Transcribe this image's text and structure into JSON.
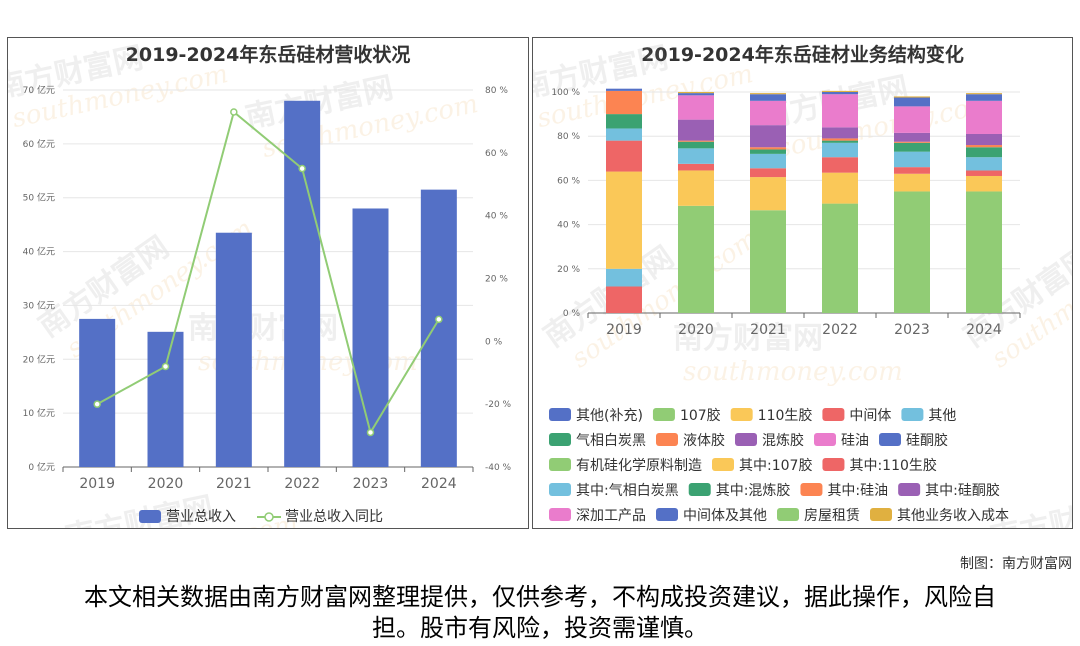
{
  "charts_meta": {
    "watermark_brand": "南方财富网",
    "watermark_site": "southmoney.com"
  },
  "credit": "制图：南方财富网",
  "disclaimer": "本文相关数据由南方财富网整理提供，仅供参考，不构成投资建议，据此操作，风险自担。股市有风险，投资需谨慎。",
  "colors": {
    "bar_blue": "#5470c6",
    "line_green": "#91cc75",
    "grid": "#e6e6e6",
    "axis_text": "#666666"
  },
  "chart_data": [
    {
      "type": "bar",
      "title": "2019-2024年东岳硅材营收状况",
      "categories": [
        "2019",
        "2020",
        "2021",
        "2022",
        "2023",
        "2024"
      ],
      "y_left": {
        "min": 0,
        "max": 70,
        "step": 10,
        "unit": "亿元"
      },
      "y_right": {
        "min": -40,
        "max": 80,
        "step": 20,
        "unit": "%"
      },
      "series": [
        {
          "name": "营业总收入",
          "type": "bar",
          "axis": "left",
          "color": "#5470c6",
          "values": [
            27.5,
            25.1,
            43.5,
            68.0,
            48.0,
            51.5
          ]
        },
        {
          "name": "营业总收入同比",
          "type": "line",
          "axis": "right",
          "color": "#91cc75",
          "values": [
            -20,
            -8,
            73,
            55,
            -29,
            7
          ]
        }
      ],
      "legend_position": "bottom"
    },
    {
      "type": "bar",
      "stacked": true,
      "normalized": true,
      "title": "2019-2024年东岳硅材业务结构变化",
      "categories": [
        "2019",
        "2020",
        "2021",
        "2022",
        "2023",
        "2024"
      ],
      "ylim": [
        0,
        100
      ],
      "y_ticks": [
        "0 %",
        "20 %",
        "40 %",
        "60 %",
        "80 %",
        "100 %"
      ],
      "legend_position": "bottom",
      "series": [
        {
          "name": "其他(补充)",
          "color": "#5470c6",
          "values": [
            0,
            0,
            0,
            0,
            0,
            0
          ]
        },
        {
          "name": "107胶",
          "color": "#91cc75",
          "values": [
            0,
            0,
            0,
            0,
            0,
            0
          ]
        },
        {
          "name": "110生胶",
          "color": "#fac858",
          "values": [
            0,
            0,
            0,
            0,
            0,
            0
          ]
        },
        {
          "name": "中间体",
          "color": "#ee6666",
          "values": [
            12,
            0,
            0,
            0,
            0,
            0
          ]
        },
        {
          "name": "其他",
          "color": "#73c0de",
          "values": [
            8,
            0,
            0,
            0,
            0,
            0
          ]
        },
        {
          "name": "气相白炭黑",
          "color": "#3ba272",
          "values": [
            0,
            0,
            0,
            0,
            0,
            0
          ]
        },
        {
          "name": "液体胶",
          "color": "#fc8452",
          "values": [
            0,
            0,
            0,
            0,
            0,
            0
          ]
        },
        {
          "name": "混炼胶",
          "color": "#9a60b4",
          "values": [
            0,
            0,
            0,
            0,
            0,
            0
          ]
        },
        {
          "name": "硅油",
          "color": "#ea7ccc",
          "values": [
            0,
            0,
            0,
            0,
            0,
            0
          ]
        },
        {
          "name": "硅酮胶",
          "color": "#5470c6",
          "values": [
            0,
            0,
            0,
            0,
            0,
            0
          ]
        },
        {
          "name": "有机硅化学原料制造",
          "color": "#91cc75",
          "values": [
            0,
            48.5,
            46.5,
            49.5,
            55,
            55
          ]
        },
        {
          "name": "其中:107胶",
          "color": "#fac858",
          "values": [
            44,
            16,
            15,
            14,
            8,
            7
          ]
        },
        {
          "name": "其中:110生胶",
          "color": "#ee6666",
          "values": [
            14,
            3,
            4,
            7,
            3,
            2.5
          ]
        },
        {
          "name": "其中:气相白炭黑",
          "color": "#73c0de",
          "values": [
            5.5,
            7,
            6.5,
            6.5,
            7,
            6
          ]
        },
        {
          "name": "其中:混炼胶",
          "color": "#3ba272",
          "values": [
            6.5,
            3,
            2,
            1,
            4,
            4.5
          ]
        },
        {
          "name": "其中:硅油",
          "color": "#fc8452",
          "values": [
            10.5,
            0.5,
            1,
            1,
            0.5,
            1
          ]
        },
        {
          "name": "其中:硅酮胶",
          "color": "#9a60b4",
          "values": [
            0,
            9.5,
            10,
            5,
            4,
            5
          ]
        },
        {
          "name": "深加工产品",
          "color": "#ea7ccc",
          "values": [
            0,
            11,
            11,
            15,
            12,
            15
          ]
        },
        {
          "name": "中间体及其他",
          "color": "#5470c6",
          "values": [
            1,
            1,
            3,
            1,
            4,
            3
          ]
        },
        {
          "name": "房屋租赁",
          "color": "#91cc75",
          "values": [
            0,
            0,
            0,
            0,
            0,
            0
          ]
        },
        {
          "name": "其他业务收入成本",
          "color": "#e0b040",
          "values": [
            0,
            0.5,
            0.5,
            0.5,
            0.5,
            0.5
          ]
        }
      ]
    }
  ]
}
